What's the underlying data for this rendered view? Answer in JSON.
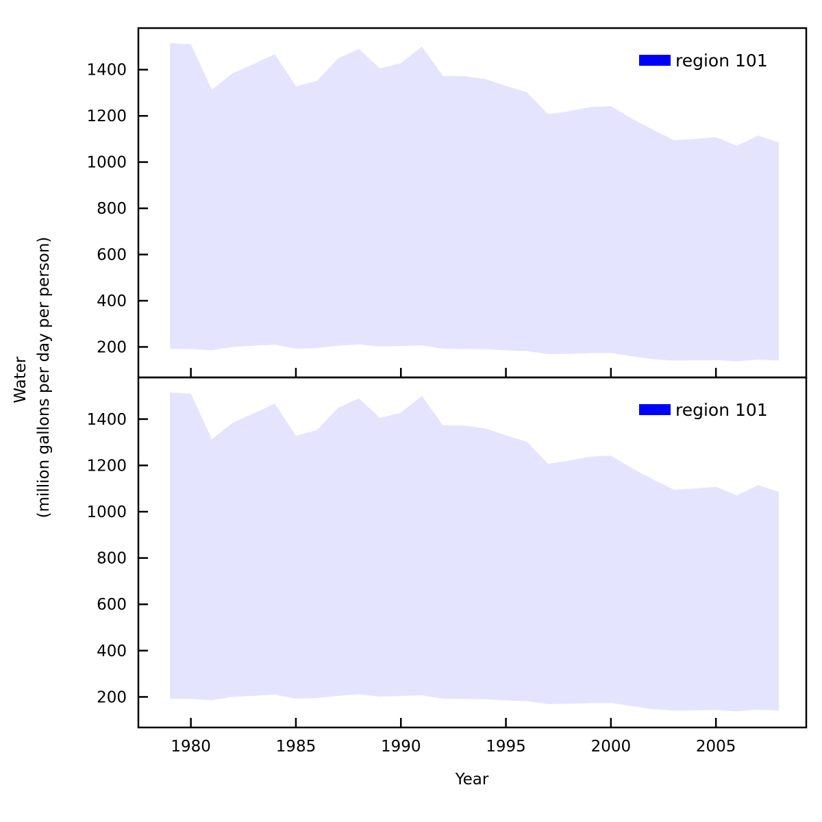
{
  "colors": {
    "fill": "#e4e4fe",
    "legend_patch": "#0000ff",
    "axis": "#000000",
    "background": "#ffffff"
  },
  "chart_data": {
    "type": "area",
    "xlabel": "Year",
    "ylabel_line1": "Water",
    "ylabel_line2": "(million gallons per day per person)",
    "xlim": [
      1977.5,
      2009.3
    ],
    "ylim": [
      68,
      1580
    ],
    "xticks": [
      1980,
      1985,
      1990,
      1995,
      2000,
      2005
    ],
    "yticks": [
      200,
      400,
      600,
      800,
      1000,
      1200,
      1400
    ],
    "grid": false,
    "legend_position": "top-right",
    "panels": [
      {
        "legend": "region 101",
        "series": {
          "x": [
            1979,
            1980,
            1981,
            1982,
            1983,
            1984,
            1985,
            1986,
            1987,
            1988,
            1989,
            1990,
            1991,
            1992,
            1993,
            1994,
            1995,
            1996,
            1997,
            1998,
            1999,
            2000,
            2001,
            2002,
            2003,
            2004,
            2005,
            2006,
            2007,
            2008
          ],
          "lower": [
            192,
            191,
            186,
            200,
            205,
            210,
            192,
            195,
            205,
            211,
            201,
            204,
            207,
            192,
            191,
            190,
            185,
            182,
            169,
            170,
            173,
            174,
            160,
            147,
            141,
            142,
            143,
            138,
            145,
            141
          ],
          "upper": [
            1515,
            1510,
            1313,
            1385,
            1425,
            1467,
            1328,
            1352,
            1448,
            1490,
            1405,
            1428,
            1500,
            1373,
            1372,
            1360,
            1330,
            1302,
            1207,
            1220,
            1238,
            1242,
            1188,
            1140,
            1095,
            1100,
            1108,
            1070,
            1115,
            1085
          ]
        }
      },
      {
        "legend": "region 101",
        "series": {
          "x": [
            1979,
            1980,
            1981,
            1982,
            1983,
            1984,
            1985,
            1986,
            1987,
            1988,
            1989,
            1990,
            1991,
            1992,
            1993,
            1994,
            1995,
            1996,
            1997,
            1998,
            1999,
            2000,
            2001,
            2002,
            2003,
            2004,
            2005,
            2006,
            2007,
            2008
          ],
          "lower": [
            192,
            191,
            186,
            200,
            205,
            210,
            192,
            195,
            205,
            211,
            201,
            204,
            207,
            192,
            191,
            190,
            185,
            182,
            169,
            170,
            173,
            174,
            160,
            147,
            141,
            142,
            143,
            138,
            145,
            141
          ],
          "upper": [
            1515,
            1510,
            1313,
            1385,
            1425,
            1467,
            1328,
            1352,
            1448,
            1490,
            1405,
            1428,
            1500,
            1373,
            1372,
            1360,
            1330,
            1302,
            1207,
            1220,
            1238,
            1242,
            1188,
            1140,
            1095,
            1100,
            1108,
            1070,
            1115,
            1085
          ]
        }
      }
    ]
  }
}
